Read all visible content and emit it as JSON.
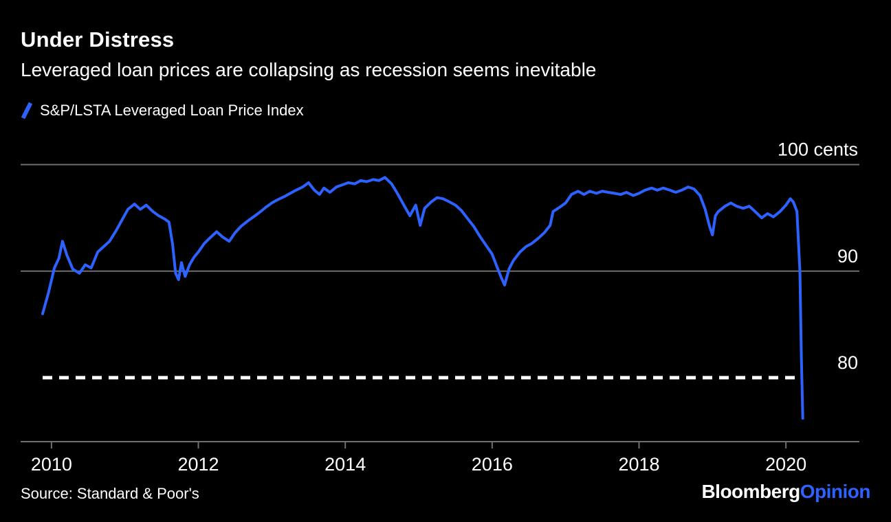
{
  "header": {
    "title": "Under Distress",
    "subtitle": "Leveraged loan prices are collapsing as recession seems inevitable",
    "legend_label": "S&P/LSTA Leveraged Loan Price Index"
  },
  "footer": {
    "source": "Source: Standard & Poor's",
    "logo_primary": "Bloomberg",
    "logo_secondary": "Opinion"
  },
  "colors": {
    "background": "#000000",
    "accent": "#2D62FF",
    "grid": "#6F6F6F",
    "text": "#FFFFFF"
  },
  "chart_data": {
    "type": "line",
    "title": "Under Distress",
    "subtitle": "Leveraged loan prices are collapsing as recession seems inevitable",
    "ylabel": "cents",
    "xlabel": "",
    "legend_position": "top-left",
    "grid": true,
    "xlim": [
      2009.58,
      2021.0
    ],
    "ylim": [
      74.0,
      100.3
    ],
    "x_ticks": [
      2010,
      2012,
      2014,
      2016,
      2018,
      2020
    ],
    "gridlines": [
      {
        "value": 100,
        "label": "100 cents",
        "style": "solid"
      },
      {
        "value": 90,
        "label": "90",
        "style": "solid"
      },
      {
        "value": 80,
        "label": "80",
        "style": "dashed"
      }
    ],
    "series": [
      {
        "name": "S&P/LSTA Leveraged Loan Price Index",
        "points": [
          [
            2009.88,
            86.0
          ],
          [
            2009.96,
            88.0
          ],
          [
            2010.04,
            90.3
          ],
          [
            2010.1,
            91.2
          ],
          [
            2010.15,
            92.8
          ],
          [
            2010.21,
            91.5
          ],
          [
            2010.29,
            90.2
          ],
          [
            2010.38,
            89.8
          ],
          [
            2010.46,
            90.6
          ],
          [
            2010.54,
            90.3
          ],
          [
            2010.63,
            91.8
          ],
          [
            2010.71,
            92.3
          ],
          [
            2010.79,
            92.8
          ],
          [
            2010.88,
            93.8
          ],
          [
            2010.96,
            94.8
          ],
          [
            2011.04,
            95.8
          ],
          [
            2011.13,
            96.3
          ],
          [
            2011.21,
            95.8
          ],
          [
            2011.29,
            96.2
          ],
          [
            2011.38,
            95.6
          ],
          [
            2011.46,
            95.2
          ],
          [
            2011.54,
            94.9
          ],
          [
            2011.6,
            94.6
          ],
          [
            2011.65,
            92.5
          ],
          [
            2011.69,
            89.8
          ],
          [
            2011.73,
            89.2
          ],
          [
            2011.77,
            90.8
          ],
          [
            2011.82,
            89.5
          ],
          [
            2011.88,
            90.6
          ],
          [
            2011.94,
            91.3
          ],
          [
            2012.0,
            91.8
          ],
          [
            2012.08,
            92.6
          ],
          [
            2012.17,
            93.2
          ],
          [
            2012.25,
            93.7
          ],
          [
            2012.33,
            93.2
          ],
          [
            2012.42,
            92.8
          ],
          [
            2012.5,
            93.6
          ],
          [
            2012.58,
            94.2
          ],
          [
            2012.67,
            94.7
          ],
          [
            2012.75,
            95.1
          ],
          [
            2012.83,
            95.5
          ],
          [
            2012.92,
            96.0
          ],
          [
            2013.0,
            96.4
          ],
          [
            2013.08,
            96.7
          ],
          [
            2013.17,
            97.0
          ],
          [
            2013.25,
            97.3
          ],
          [
            2013.33,
            97.6
          ],
          [
            2013.42,
            97.9
          ],
          [
            2013.5,
            98.3
          ],
          [
            2013.58,
            97.6
          ],
          [
            2013.65,
            97.2
          ],
          [
            2013.71,
            97.8
          ],
          [
            2013.79,
            97.4
          ],
          [
            2013.88,
            97.9
          ],
          [
            2013.96,
            98.1
          ],
          [
            2014.04,
            98.3
          ],
          [
            2014.13,
            98.2
          ],
          [
            2014.21,
            98.5
          ],
          [
            2014.29,
            98.4
          ],
          [
            2014.38,
            98.6
          ],
          [
            2014.46,
            98.5
          ],
          [
            2014.54,
            98.8
          ],
          [
            2014.63,
            98.2
          ],
          [
            2014.71,
            97.3
          ],
          [
            2014.79,
            96.3
          ],
          [
            2014.88,
            95.2
          ],
          [
            2014.96,
            96.2
          ],
          [
            2015.02,
            94.3
          ],
          [
            2015.08,
            95.9
          ],
          [
            2015.17,
            96.5
          ],
          [
            2015.25,
            96.9
          ],
          [
            2015.33,
            96.8
          ],
          [
            2015.42,
            96.5
          ],
          [
            2015.5,
            96.2
          ],
          [
            2015.58,
            95.7
          ],
          [
            2015.67,
            94.9
          ],
          [
            2015.75,
            94.2
          ],
          [
            2015.83,
            93.3
          ],
          [
            2015.92,
            92.4
          ],
          [
            2016.0,
            91.6
          ],
          [
            2016.06,
            90.5
          ],
          [
            2016.13,
            89.3
          ],
          [
            2016.17,
            88.7
          ],
          [
            2016.23,
            90.2
          ],
          [
            2016.29,
            91.0
          ],
          [
            2016.38,
            91.8
          ],
          [
            2016.46,
            92.3
          ],
          [
            2016.54,
            92.6
          ],
          [
            2016.63,
            93.1
          ],
          [
            2016.71,
            93.6
          ],
          [
            2016.79,
            94.3
          ],
          [
            2016.83,
            95.6
          ],
          [
            2016.92,
            96.0
          ],
          [
            2017.0,
            96.4
          ],
          [
            2017.08,
            97.2
          ],
          [
            2017.17,
            97.5
          ],
          [
            2017.25,
            97.2
          ],
          [
            2017.33,
            97.5
          ],
          [
            2017.42,
            97.3
          ],
          [
            2017.5,
            97.5
          ],
          [
            2017.58,
            97.4
          ],
          [
            2017.67,
            97.3
          ],
          [
            2017.75,
            97.2
          ],
          [
            2017.83,
            97.4
          ],
          [
            2017.92,
            97.1
          ],
          [
            2018.0,
            97.3
          ],
          [
            2018.08,
            97.6
          ],
          [
            2018.17,
            97.8
          ],
          [
            2018.25,
            97.6
          ],
          [
            2018.33,
            97.8
          ],
          [
            2018.42,
            97.6
          ],
          [
            2018.5,
            97.4
          ],
          [
            2018.58,
            97.6
          ],
          [
            2018.67,
            97.9
          ],
          [
            2018.75,
            97.7
          ],
          [
            2018.83,
            97.1
          ],
          [
            2018.9,
            95.8
          ],
          [
            2018.96,
            94.2
          ],
          [
            2019.0,
            93.4
          ],
          [
            2019.04,
            95.2
          ],
          [
            2019.08,
            95.6
          ],
          [
            2019.17,
            96.1
          ],
          [
            2019.25,
            96.4
          ],
          [
            2019.33,
            96.1
          ],
          [
            2019.42,
            95.9
          ],
          [
            2019.5,
            96.1
          ],
          [
            2019.58,
            95.6
          ],
          [
            2019.67,
            95.0
          ],
          [
            2019.75,
            95.4
          ],
          [
            2019.83,
            95.1
          ],
          [
            2019.92,
            95.6
          ],
          [
            2020.0,
            96.2
          ],
          [
            2020.06,
            96.8
          ],
          [
            2020.1,
            96.5
          ],
          [
            2020.15,
            95.6
          ],
          [
            2020.19,
            90.0
          ],
          [
            2020.21,
            82.0
          ],
          [
            2020.23,
            76.2
          ]
        ]
      }
    ]
  }
}
